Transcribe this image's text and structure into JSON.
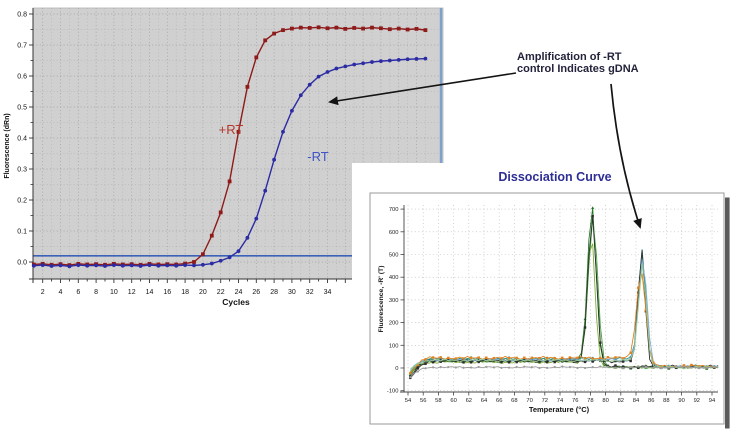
{
  "annotation": {
    "line1": "Amplification of -RT",
    "line2": "control Indicates gDNA"
  },
  "chart_data": [
    {
      "id": "amplification-plot",
      "type": "line",
      "title": "",
      "xlabel": "Cycles",
      "ylabel": "Fluorescence (dRn)",
      "x_tick_labels": [
        2,
        4,
        6,
        8,
        10,
        12,
        14,
        16,
        18,
        20,
        22,
        24,
        26,
        28,
        30,
        32,
        34
      ],
      "y_tick_labels": [
        "0.0",
        "0.1",
        "0.2",
        "0.3",
        "0.4",
        "0.5",
        "0.6",
        "0.7",
        "0.8"
      ],
      "xlim": [
        1,
        46
      ],
      "ylim": [
        -0.055,
        0.82
      ],
      "grid": "dotted",
      "plot_bg_color": "#d0d0d0",
      "grid_color": "#9a9a9a",
      "threshold_value": 0.02,
      "threshold_color": "#3b62b8",
      "right_edge_line_color": "#7da1cd",
      "cycles": [
        1,
        2,
        3,
        4,
        5,
        6,
        7,
        8,
        9,
        10,
        11,
        12,
        13,
        14,
        15,
        16,
        17,
        18,
        19,
        20,
        21,
        22,
        23,
        24,
        25,
        26,
        27,
        28,
        29,
        30,
        31,
        32,
        33,
        34,
        35,
        36,
        37,
        38,
        39,
        40,
        41,
        42,
        43,
        44,
        45
      ],
      "series": [
        {
          "name": "+RT",
          "label": "+RT",
          "label_color": "#b5372b",
          "color": "#8e1a1a",
          "marker": "square",
          "ct_cycle": 20,
          "plateau": 0.755,
          "values": [
            -0.008,
            -0.006,
            -0.009,
            -0.007,
            -0.01,
            -0.006,
            -0.008,
            -0.007,
            -0.009,
            -0.006,
            -0.008,
            -0.007,
            -0.009,
            -0.006,
            -0.008,
            -0.007,
            -0.008,
            -0.005,
            0.0,
            0.025,
            0.085,
            0.16,
            0.26,
            0.42,
            0.565,
            0.66,
            0.715,
            0.737,
            0.748,
            0.753,
            0.756,
            0.755,
            0.757,
            0.754,
            0.756,
            0.752,
            0.755,
            0.753,
            0.756,
            0.754,
            0.751,
            0.753,
            0.75,
            0.752,
            0.748
          ]
        },
        {
          "name": "-RT",
          "label": "-RT",
          "label_color": "#4254c5",
          "color": "#2b2ba4",
          "marker": "circle",
          "ct_cycle": 24,
          "plateau": 0.655,
          "values": [
            -0.012,
            -0.01,
            -0.013,
            -0.011,
            -0.014,
            -0.01,
            -0.012,
            -0.011,
            -0.013,
            -0.01,
            -0.012,
            -0.011,
            -0.013,
            -0.01,
            -0.012,
            -0.011,
            -0.012,
            -0.01,
            -0.011,
            -0.009,
            -0.005,
            0.004,
            0.015,
            0.035,
            0.078,
            0.14,
            0.23,
            0.33,
            0.42,
            0.488,
            0.538,
            0.572,
            0.598,
            0.613,
            0.624,
            0.631,
            0.637,
            0.641,
            0.645,
            0.648,
            0.65,
            0.652,
            0.654,
            0.655,
            0.656
          ]
        }
      ]
    },
    {
      "id": "dissociation-plot",
      "type": "line",
      "title": "Dissociation Curve",
      "title_color": "#2e2e96",
      "xlabel": "Temperature (°C)",
      "ylabel": "Fluorescence, -R' (T)",
      "x_tick_labels": [
        54,
        56,
        58,
        60,
        62,
        64,
        66,
        68,
        70,
        72,
        74,
        76,
        78,
        80,
        82,
        84,
        86,
        88,
        90,
        92,
        94
      ],
      "y_tick_labels": [
        -100,
        0,
        100,
        200,
        300,
        400,
        500,
        600,
        700
      ],
      "xlim": [
        54,
        95
      ],
      "ylim": [
        -105,
        760
      ],
      "grid": "dotted",
      "peak_summary": {
        "specific_product_tm": 78.3,
        "gdna_contamination_tm": 84.8,
        "peak1_max": 700,
        "peak2_max": 500
      },
      "series": [
        {
          "name": "peak78-green-dark",
          "color": "#1e7b22",
          "peak_c": 78.2,
          "peak_h": 700,
          "sigma": 0.55,
          "base_pre": 36,
          "base_post": 4,
          "marker": "triangle",
          "dip": 9
        },
        {
          "name": "peak78-green",
          "color": "#4aa23e",
          "peak_c": 78.35,
          "peak_h": 645,
          "sigma": 0.6,
          "base_pre": 30,
          "base_post": 3,
          "marker": "none",
          "dip": 7
        },
        {
          "name": "peak78-olive",
          "color": "#7fae3c",
          "peak_c": 78.1,
          "peak_h": 580,
          "sigma": 0.5,
          "base_pre": 26,
          "base_post": 3,
          "marker": "none",
          "dip": 6
        },
        {
          "name": "peak78-black",
          "color": "#2e2e2e",
          "peak_c": 78.25,
          "peak_h": 655,
          "sigma": 0.55,
          "base_pre": 33,
          "base_post": 5,
          "marker": "square",
          "dip": 10
        },
        {
          "name": "peak85-teal",
          "color": "#2f9394",
          "peak_c": 84.8,
          "peak_h": 500,
          "sigma": 0.5,
          "base_pre": 40,
          "base_post": 7,
          "marker": "circle",
          "dip": 8
        },
        {
          "name": "peak85-black",
          "color": "#2e2e2e",
          "peak_c": 84.75,
          "peak_h": 505,
          "sigma": 0.45,
          "base_pre": 30,
          "base_post": 6,
          "marker": "square",
          "dip": 11
        },
        {
          "name": "peak85-lightblue",
          "color": "#7fb1dc",
          "peak_c": 84.9,
          "peak_h": 462,
          "sigma": 0.55,
          "base_pre": 36,
          "base_post": 5,
          "marker": "none",
          "dip": 6
        },
        {
          "name": "peak85-orange",
          "color": "#e0821f",
          "peak_c": 84.7,
          "peak_h": 398,
          "sigma": 0.6,
          "base_pre": 44,
          "base_post": 8,
          "marker": "square",
          "dip": 9
        },
        {
          "name": "peak85-lightgreen",
          "color": "#9bc98e",
          "peak_c": 84.85,
          "peak_h": 440,
          "sigma": 0.5,
          "base_pre": 33,
          "base_post": 4,
          "marker": "none",
          "dip": 5
        },
        {
          "name": "baseline-grey",
          "color": "#9c9c9c",
          "peak_c": 0,
          "peak_h": 0,
          "sigma": 1,
          "base_pre": 3,
          "base_post": -2,
          "marker": "circle",
          "dip": 6
        }
      ]
    }
  ]
}
